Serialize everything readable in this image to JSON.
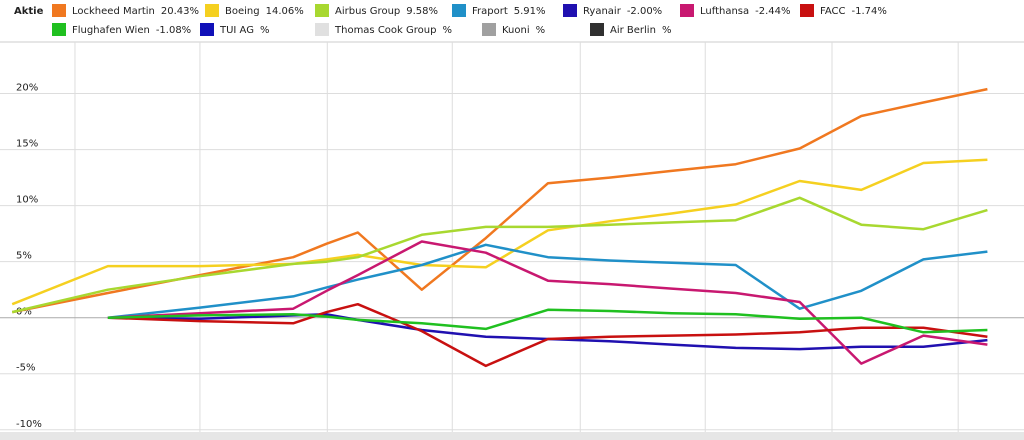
{
  "chart_data": {
    "type": "line",
    "legend_title": "Aktie",
    "x": [
      0,
      1.57,
      3.08,
      4.61,
      5.16,
      5.67,
      6.72,
      7.77,
      8.79,
      9.8,
      10.82,
      11.87,
      12.92,
      13.93,
      14.95,
      16
    ],
    "xlim": [
      -0.2,
      16.6
    ],
    "xticks": [
      1.03,
      3.08,
      5.17,
      7.22,
      9.32,
      11.37,
      13.45,
      15.52
    ],
    "ylim": [
      -10.2,
      24.6
    ],
    "yticks": [
      {
        "value": -10,
        "label": "-10%"
      },
      {
        "value": -5,
        "label": "-5%"
      },
      {
        "value": 0,
        "label": "0%"
      },
      {
        "value": 5,
        "label": "5%"
      },
      {
        "value": 10,
        "label": "10%"
      },
      {
        "value": 15,
        "label": "15%"
      },
      {
        "value": 20,
        "label": "20%"
      }
    ],
    "grid": true,
    "series": [
      {
        "name": "Lockheed Martin",
        "change_label": "20.43%",
        "color": "#f07820",
        "values": [
          0.5,
          2.2,
          3.8,
          5.4,
          6.6,
          7.6,
          2.5,
          7.1,
          12.0,
          12.5,
          13.1,
          13.7,
          15.1,
          18.0,
          19.2,
          20.4
        ]
      },
      {
        "name": "Boeing",
        "change_label": "14.06%",
        "color": "#f5d020",
        "values": [
          1.2,
          4.6,
          4.6,
          4.8,
          5.2,
          5.6,
          4.7,
          4.5,
          7.8,
          8.6,
          9.3,
          10.1,
          12.2,
          11.4,
          13.8,
          14.1
        ]
      },
      {
        "name": "Airbus Group",
        "change_label": "9.58%",
        "color": "#a8d830",
        "values": [
          0.5,
          2.5,
          3.7,
          4.8,
          5.0,
          5.4,
          7.4,
          8.1,
          8.1,
          8.3,
          8.5,
          8.7,
          10.7,
          8.3,
          7.9,
          9.6
        ]
      },
      {
        "name": "Fraport",
        "change_label": "5.91%",
        "color": "#2090c8",
        "values": [
          null,
          0,
          0.9,
          1.9,
          2.7,
          3.4,
          4.7,
          6.5,
          5.4,
          5.1,
          4.9,
          4.7,
          0.8,
          2.4,
          5.2,
          5.9
        ]
      },
      {
        "name": "Ryanair",
        "change_label": "-2.00%",
        "color": "#2010b0",
        "values": [
          null,
          0,
          -0.1,
          0.2,
          0.3,
          -0.2,
          -1.1,
          -1.7,
          -1.9,
          -2.1,
          -2.4,
          -2.7,
          -2.8,
          -2.6,
          -2.6,
          -2.0
        ]
      },
      {
        "name": "Lufthansa",
        "change_label": "-2.44%",
        "color": "#c81870",
        "values": [
          null,
          0,
          0.4,
          0.8,
          2.4,
          3.8,
          6.8,
          5.8,
          3.3,
          3.0,
          2.6,
          2.2,
          1.4,
          -4.1,
          -1.6,
          -2.4
        ]
      },
      {
        "name": "FACC",
        "change_label": "-1.74%",
        "color": "#c81010",
        "values": [
          null,
          0,
          -0.3,
          -0.5,
          0.5,
          1.2,
          -1.2,
          -4.3,
          -1.9,
          -1.7,
          -1.6,
          -1.5,
          -1.3,
          -0.9,
          -0.9,
          -1.7
        ]
      },
      {
        "name": "Flughafen Wien",
        "change_label": "-1.08%",
        "color": "#20c020",
        "values": [
          null,
          0,
          0.2,
          0.3,
          0.1,
          -0.2,
          -0.5,
          -1.0,
          0.7,
          0.6,
          0.4,
          0.3,
          -0.1,
          0.0,
          -1.3,
          -1.1
        ]
      },
      {
        "name": "TUI AG",
        "change_label": "%",
        "color": "#1010b8",
        "values": [
          null,
          null,
          null,
          null,
          null,
          null,
          null,
          null,
          null,
          null,
          null,
          null,
          null,
          null,
          null,
          null
        ]
      },
      {
        "name": "Thomas Cook Group",
        "change_label": "%",
        "color": "#e0e0e0",
        "values": [
          null,
          null,
          null,
          null,
          null,
          null,
          null,
          null,
          null,
          null,
          null,
          null,
          null,
          null,
          null,
          null
        ]
      },
      {
        "name": "Kuoni",
        "change_label": "%",
        "color": "#a0a0a0",
        "values": [
          null,
          null,
          null,
          null,
          null,
          null,
          null,
          null,
          null,
          null,
          null,
          null,
          null,
          null,
          null,
          null
        ]
      },
      {
        "name": "Air Berlin",
        "change_label": "%",
        "color": "#303030",
        "values": [
          null,
          null,
          null,
          null,
          null,
          null,
          null,
          null,
          null,
          null,
          null,
          null,
          null,
          null,
          null,
          null
        ]
      }
    ]
  }
}
